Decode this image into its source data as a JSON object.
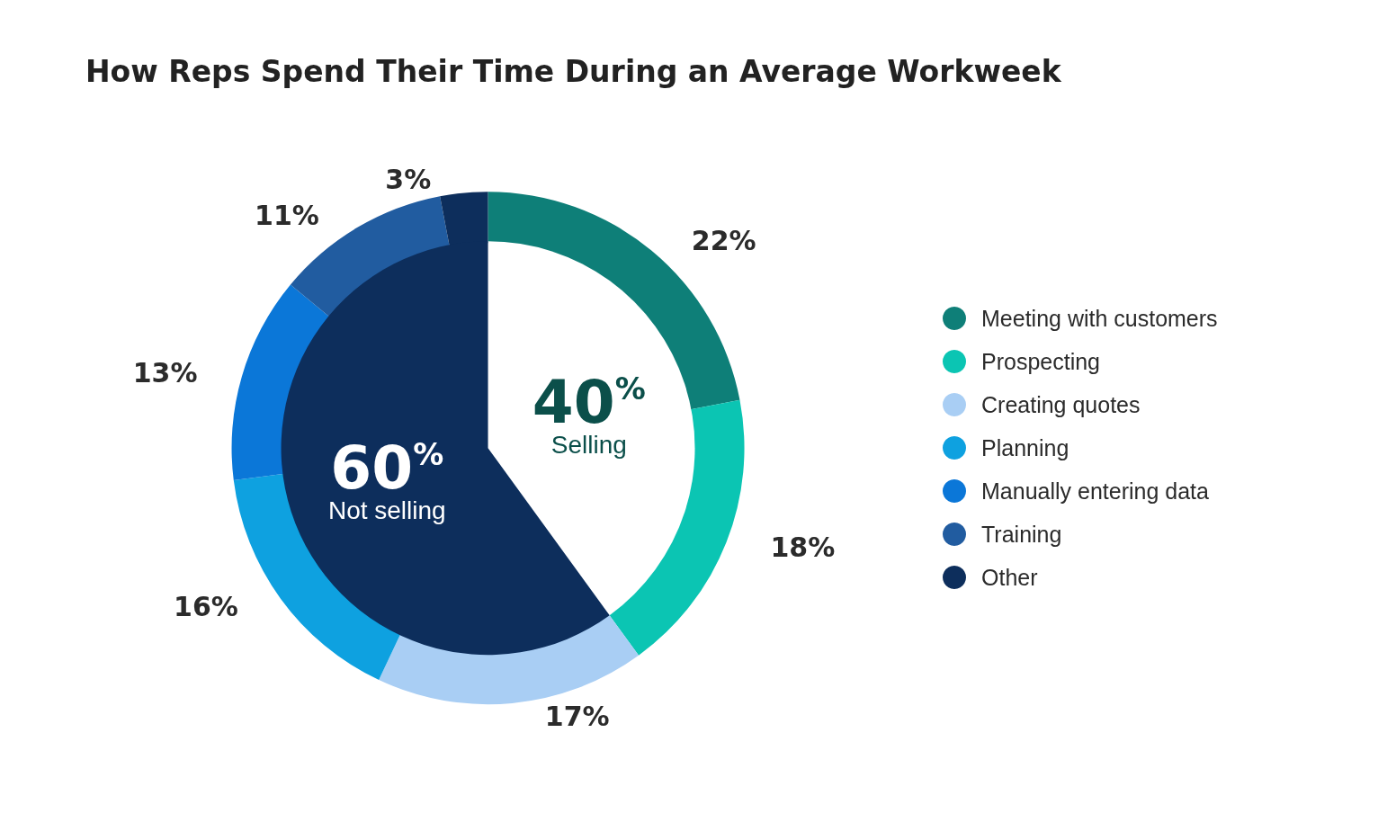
{
  "chart_data": [
    {
      "type": "donut",
      "title": "How Reps Spend Their Time During an Average Workweek",
      "categories": [
        "Meeting with customers",
        "Prospecting",
        "Creating quotes",
        "Planning",
        "Manually entering data",
        "Training",
        "Other"
      ],
      "values": [
        22,
        18,
        17,
        16,
        13,
        11,
        3
      ],
      "value_labels": [
        "22%",
        "18%",
        "17%",
        "16%",
        "13%",
        "11%",
        "3%"
      ],
      "colors": [
        "#0e7f78",
        "#0bc5b3",
        "#a9cef4",
        "#0ea1e0",
        "#0b77d8",
        "#215ca0",
        "#0d2e5c"
      ],
      "legend": "right"
    },
    {
      "type": "pie",
      "categories": [
        "Selling",
        "Not selling"
      ],
      "values": [
        40,
        60
      ],
      "value_labels": [
        "40%",
        "60%"
      ],
      "colors": [
        "#ffffff",
        "#0d2e5c"
      ]
    }
  ]
}
